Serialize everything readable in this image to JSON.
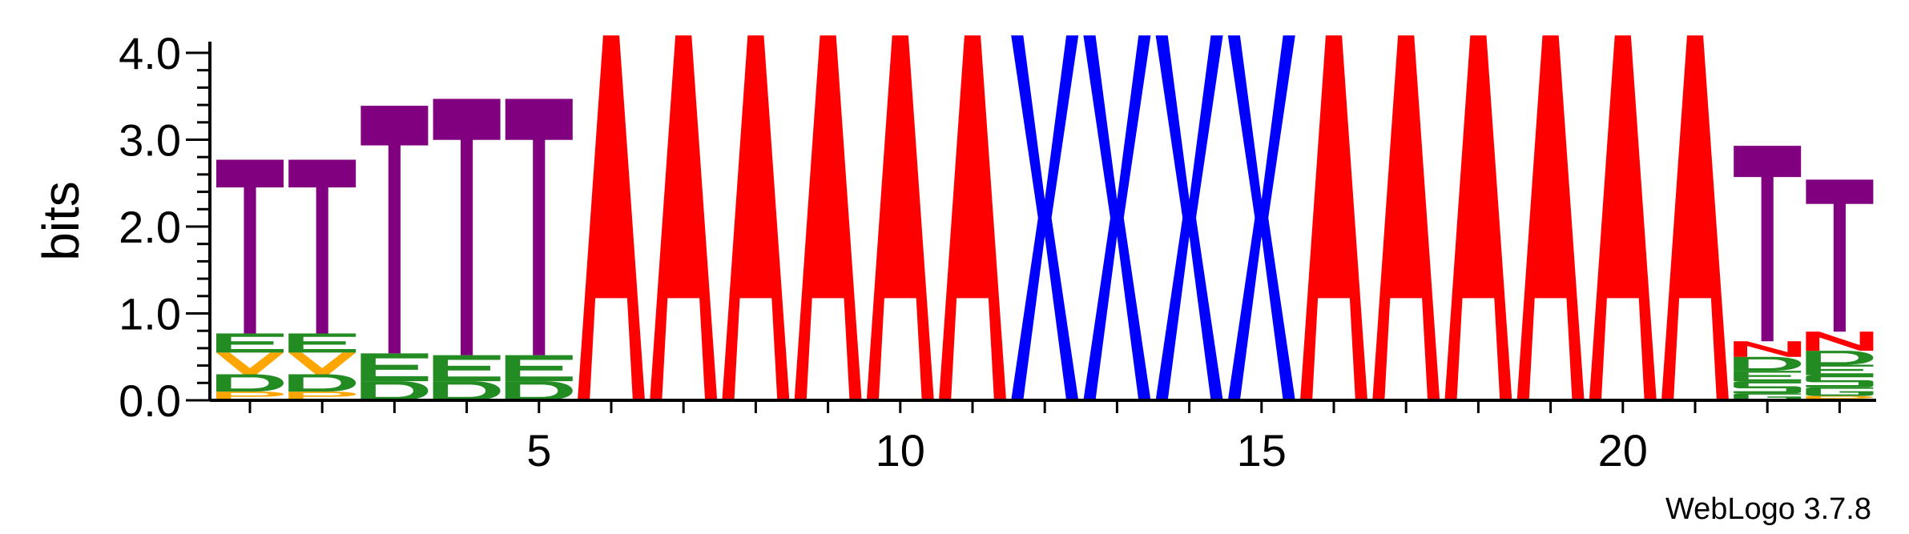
{
  "chart_data": {
    "type": "sequence-logo",
    "ylabel": "bits",
    "ylim": [
      0,
      4.0
    ],
    "y_ticks": [
      "0.0",
      "1.0",
      "2.0",
      "3.0",
      "4.0"
    ],
    "y_tick_values": [
      0,
      1,
      2,
      3,
      4
    ],
    "y_minor_step": 0.2,
    "x_ticks": [
      "5",
      "10",
      "15",
      "20"
    ],
    "x_tick_positions": [
      5,
      10,
      15,
      20
    ],
    "x_range": [
      1,
      23
    ],
    "credit": "WebLogo 3.7.8",
    "colors": {
      "T": "#800080",
      "A": "#ff0000",
      "X": "#0000ff",
      "E": "#228b22",
      "D": "#228b22",
      "V": "#ffa500",
      "P": "#ffa500",
      "N": "#ff0000",
      "S": "#228b22",
      "G": "#228b22"
    },
    "positions": [
      {
        "pos": 1,
        "stack": [
          [
            "P",
            0.1
          ],
          [
            "D",
            0.2
          ],
          [
            "V",
            0.25
          ],
          [
            "E",
            0.22
          ],
          [
            "T",
            2.0
          ]
        ]
      },
      {
        "pos": 2,
        "stack": [
          [
            "P",
            0.1
          ],
          [
            "D",
            0.2
          ],
          [
            "V",
            0.25
          ],
          [
            "E",
            0.22
          ],
          [
            "T",
            2.0
          ]
        ]
      },
      {
        "pos": 3,
        "stack": [
          [
            "D",
            0.22
          ],
          [
            "E",
            0.32
          ],
          [
            "T",
            2.85
          ]
        ]
      },
      {
        "pos": 4,
        "stack": [
          [
            "D",
            0.22
          ],
          [
            "E",
            0.3
          ],
          [
            "T",
            2.95
          ]
        ]
      },
      {
        "pos": 5,
        "stack": [
          [
            "D",
            0.22
          ],
          [
            "E",
            0.3
          ],
          [
            "T",
            2.95
          ]
        ]
      },
      {
        "pos": 6,
        "stack": [
          [
            "A",
            4.2
          ]
        ]
      },
      {
        "pos": 7,
        "stack": [
          [
            "A",
            4.2
          ]
        ]
      },
      {
        "pos": 8,
        "stack": [
          [
            "A",
            4.2
          ]
        ]
      },
      {
        "pos": 9,
        "stack": [
          [
            "A",
            4.2
          ]
        ]
      },
      {
        "pos": 10,
        "stack": [
          [
            "A",
            4.2
          ]
        ]
      },
      {
        "pos": 11,
        "stack": [
          [
            "A",
            4.2
          ]
        ]
      },
      {
        "pos": 12,
        "stack": [
          [
            "X",
            4.2
          ]
        ]
      },
      {
        "pos": 13,
        "stack": [
          [
            "X",
            4.2
          ]
        ]
      },
      {
        "pos": 14,
        "stack": [
          [
            "X",
            4.2
          ]
        ]
      },
      {
        "pos": 15,
        "stack": [
          [
            "X",
            4.2
          ]
        ]
      },
      {
        "pos": 16,
        "stack": [
          [
            "A",
            4.2
          ]
        ]
      },
      {
        "pos": 17,
        "stack": [
          [
            "A",
            4.2
          ]
        ]
      },
      {
        "pos": 18,
        "stack": [
          [
            "A",
            4.2
          ]
        ]
      },
      {
        "pos": 19,
        "stack": [
          [
            "A",
            4.2
          ]
        ]
      },
      {
        "pos": 20,
        "stack": [
          [
            "A",
            4.2
          ]
        ]
      },
      {
        "pos": 21,
        "stack": [
          [
            "A",
            4.2
          ]
        ]
      },
      {
        "pos": 22,
        "stack": [
          [
            "G",
            0.08
          ],
          [
            "S",
            0.14
          ],
          [
            "E",
            0.12
          ],
          [
            "D",
            0.16
          ],
          [
            "N",
            0.18
          ],
          [
            "T",
            2.25
          ]
        ]
      },
      {
        "pos": 23,
        "stack": [
          [
            "P",
            0.05
          ],
          [
            "G",
            0.1
          ],
          [
            "S",
            0.14
          ],
          [
            "E",
            0.12
          ],
          [
            "D",
            0.16
          ],
          [
            "N",
            0.22
          ],
          [
            "T",
            1.75
          ]
        ]
      }
    ]
  }
}
